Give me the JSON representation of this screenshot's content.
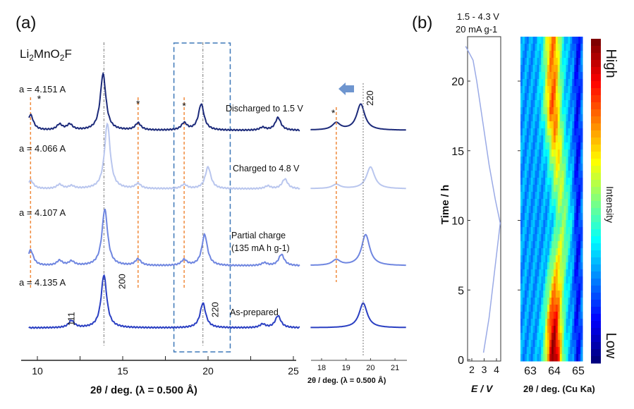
{
  "chart_data": [
    {
      "type": "line",
      "panel_label": "(a)",
      "compound": {
        "main": "Li",
        "parts": [
          "Li",
          "2",
          "MnO",
          "2",
          "F"
        ]
      },
      "xlabel": "2θ / deg.   (λ = 0.500 Å)",
      "xlim": [
        9,
        25.5
      ],
      "xticks": [
        "10",
        "15",
        "20",
        "25"
      ],
      "grid": false,
      "reflections": [
        {
          "label": "111",
          "x": 12.0
        },
        {
          "label": "200",
          "x": 13.9
        },
        {
          "label": "220",
          "x": 19.7
        }
      ],
      "reference_lines_x": [
        13.9,
        19.7
      ],
      "impurity_marker": "*",
      "impurity_lines_x": [
        9.6,
        15.9,
        18.6
      ],
      "highlight_box_x": [
        18.0,
        21.3
      ],
      "series": [
        {
          "name": "Discharged to 1.5 V",
          "lattice": "a = 4.151 A",
          "color": "#1c2a7a",
          "peaks": [
            [
              9.6,
              22
            ],
            [
              11.3,
              8
            ],
            [
              11.9,
              8
            ],
            [
              13.85,
              80
            ],
            [
              15.9,
              10
            ],
            [
              18.6,
              10
            ],
            [
              19.6,
              37
            ],
            [
              23.2,
              4
            ],
            [
              24.1,
              18
            ]
          ]
        },
        {
          "name": "Charged to 4.8 V",
          "lattice": "a = 4.066 A",
          "color": "#b9c6ee",
          "peaks": [
            [
              9.6,
              12
            ],
            [
              11.3,
              6
            ],
            [
              12.0,
              4
            ],
            [
              14.1,
              93
            ],
            [
              15.9,
              7
            ],
            [
              18.6,
              6
            ],
            [
              20.0,
              31
            ],
            [
              23.5,
              4
            ],
            [
              24.5,
              14
            ]
          ]
        },
        {
          "name": "Partial charge",
          "name_line2": "(135 mA h g-1)",
          "lattice": "a = 4.107 A",
          "color": "#6f86e0",
          "peaks": [
            [
              9.6,
              22
            ],
            [
              11.3,
              7
            ],
            [
              12.0,
              6
            ],
            [
              13.95,
              80
            ],
            [
              15.9,
              9
            ],
            [
              18.6,
              8
            ],
            [
              19.8,
              44
            ],
            [
              23.3,
              4
            ],
            [
              24.3,
              16
            ]
          ]
        },
        {
          "name": "As-prepared",
          "lattice": "a = 4.135 A",
          "color": "#2a3fc2",
          "peaks": [
            [
              12.0,
              10
            ],
            [
              13.9,
              75
            ],
            [
              19.7,
              35
            ],
            [
              23.2,
              5
            ],
            [
              24.1,
              17
            ]
          ]
        }
      ]
    },
    {
      "type": "line",
      "panel_label": "inset",
      "xlabel": "2θ / deg.   (λ = 0.500 Å)",
      "xlim": [
        17.5,
        21.5
      ],
      "xticks": [
        "18",
        "19",
        "20",
        "21"
      ],
      "reflection_label": "220",
      "arrow": "left",
      "impurity_line_x": 18.6,
      "reference_line_x": 19.7
    },
    {
      "type": "line",
      "panel_label": "(b)",
      "title_line1": "1.5 - 4.3 V",
      "title_line2": "20 mA g-1",
      "xlabel": "E / V",
      "ylabel": "Time   /   h",
      "xlim": [
        1.4,
        4.4
      ],
      "ylim": [
        0,
        23.3
      ],
      "xticks": [
        "2",
        "3",
        "4"
      ],
      "yticks": [
        "0",
        "5",
        "10",
        "15",
        "20"
      ],
      "points": [
        [
          2.95,
          0.5
        ],
        [
          3.4,
          3
        ],
        [
          3.8,
          6
        ],
        [
          4.3,
          9.8
        ],
        [
          3.9,
          11.5
        ],
        [
          3.4,
          14
        ],
        [
          2.9,
          17
        ],
        [
          2.4,
          20
        ],
        [
          2.1,
          21.5
        ],
        [
          1.5,
          22.5
        ]
      ],
      "color": "#9aaae6"
    },
    {
      "type": "heatmap",
      "xlabel": "2θ / deg.   (Cu Ka)",
      "xlim": [
        62.6,
        65.1
      ],
      "ylim": [
        0,
        23.3
      ],
      "xticks": [
        "63",
        "64",
        "65"
      ],
      "colorbar_label": "Intensity",
      "colorbar_high": "High",
      "colorbar_low": "Low",
      "colormap": "jet",
      "peak_center_vs_time": [
        [
          0,
          63.95
        ],
        [
          3,
          63.95
        ],
        [
          6,
          64.05
        ],
        [
          10,
          64.3
        ],
        [
          14,
          64.1
        ],
        [
          18,
          63.9
        ],
        [
          22,
          63.9
        ]
      ],
      "peak_intensity_vs_time": [
        [
          0,
          1.0
        ],
        [
          3,
          0.85
        ],
        [
          6,
          0.55
        ],
        [
          10,
          0.3
        ],
        [
          14,
          0.45
        ],
        [
          18,
          0.7
        ],
        [
          22,
          0.65
        ]
      ]
    }
  ]
}
